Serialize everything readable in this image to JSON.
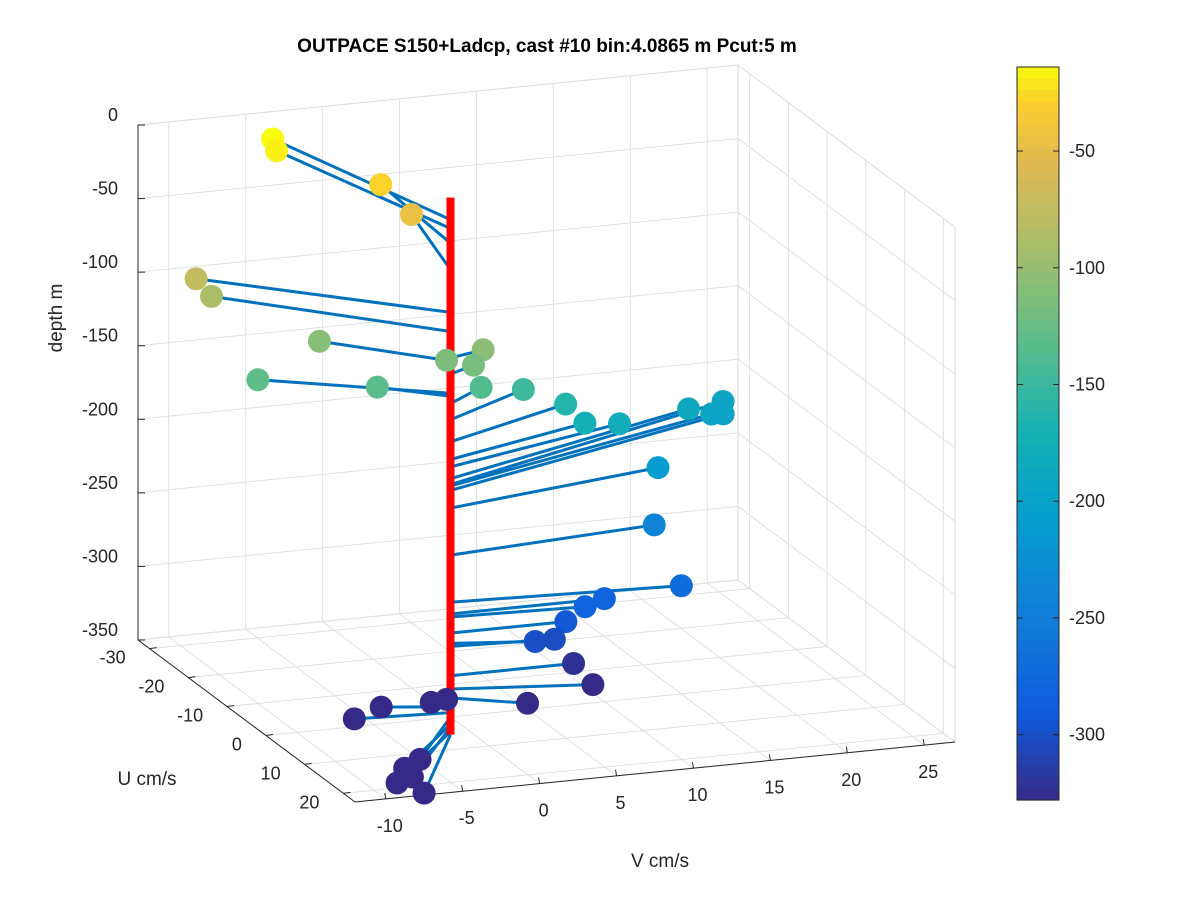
{
  "chart_data": {
    "type": "scatter",
    "projection": "3d",
    "title": "OUTPACE S150+Ladcp, cast #10 bin:4.0865 m  Pcut:5 m",
    "xlabel": "V cm/s",
    "ylabel": "U cm/s",
    "zlabel": "depth m",
    "xlim": [
      -12,
      27
    ],
    "ylim": [
      -33,
      23
    ],
    "zlim": [
      -350,
      0
    ],
    "x_ticks": [
      "-10",
      "-5",
      "0",
      "5",
      "10",
      "15",
      "20",
      "25"
    ],
    "y_ticks": [
      "-30",
      "-20",
      "-10",
      "0",
      "10",
      "20"
    ],
    "z_ticks": [
      "0",
      "-50",
      "-100",
      "-150",
      "-200",
      "-250",
      "-300",
      "-350"
    ],
    "colorbar": {
      "ticks": [
        "-50",
        "-100",
        "-150",
        "-200",
        "-250",
        "-300"
      ],
      "range": [
        -328,
        -14
      ],
      "colormap": "parula"
    },
    "grid": true,
    "profile_line_color": "#ff0000",
    "vector_line_color": "#0072bd",
    "points": [
      {
        "depth": -12,
        "v": -4,
        "u": -30
      },
      {
        "depth": -18,
        "v": -4,
        "u": -29
      },
      {
        "depth": -28,
        "v": 0.5,
        "u": -20
      },
      {
        "depth": -46,
        "v": 2,
        "u": -18
      },
      {
        "depth": -75,
        "v": -12,
        "u": -18
      },
      {
        "depth": -88,
        "v": -11,
        "u": -18
      },
      {
        "depth": -106,
        "v": 2.5,
        "u": -1.5
      },
      {
        "depth": -108,
        "v": -6,
        "u": -10
      },
      {
        "depth": -114,
        "v": 0.5,
        "u": -3
      },
      {
        "depth": -117,
        "v": 2,
        "u": -2
      },
      {
        "depth": -130,
        "v": -10,
        "u": -10
      },
      {
        "depth": -132,
        "v": -3.5,
        "u": -5
      },
      {
        "depth": -137,
        "v": 3,
        "u": -4
      },
      {
        "depth": -148,
        "v": 6.5,
        "u": -7
      },
      {
        "depth": -163,
        "v": 9.5,
        "u": -8
      },
      {
        "depth": -175,
        "v": 10.5,
        "u": -7
      },
      {
        "depth": -180,
        "v": 13,
        "u": -8
      },
      {
        "depth": -188,
        "v": 19,
        "u": -14
      },
      {
        "depth": -192,
        "v": 22,
        "u": -17
      },
      {
        "depth": -193,
        "v": 20.5,
        "u": -14
      },
      {
        "depth": -196,
        "v": 21.5,
        "u": -15
      },
      {
        "depth": -208,
        "v": 15,
        "u": -6
      },
      {
        "depth": -240,
        "v": 14,
        "u": -3
      },
      {
        "depth": -272,
        "v": 14.5,
        "u": 2
      },
      {
        "depth": -280,
        "v": 10,
        "u": 0
      },
      {
        "depth": -282,
        "v": 8.5,
        "u": 1
      },
      {
        "depth": -293,
        "v": 7.5,
        "u": 0
      },
      {
        "depth": -300,
        "v": 5,
        "u": 2
      },
      {
        "depth": -302,
        "v": 6.5,
        "u": 1
      },
      {
        "depth": -322,
        "v": 8,
        "u": 0
      },
      {
        "depth": -331,
        "v": 8.5,
        "u": 3
      },
      {
        "depth": -337,
        "v": 4,
        "u": 4
      },
      {
        "depth": -340,
        "v": 0,
        "u": -1
      },
      {
        "depth": -341,
        "v": -1,
        "u": -1
      },
      {
        "depth": -343,
        "v": -4,
        "u": -2
      },
      {
        "depth": -347,
        "v": -6,
        "u": -1
      },
      {
        "depth": -350,
        "v": -5,
        "u": 12
      },
      {
        "depth": -355,
        "v": -6,
        "u": 12
      },
      {
        "depth": -357,
        "v": -6,
        "u": 14
      },
      {
        "depth": -360,
        "v": -7,
        "u": 14
      },
      {
        "depth": -362,
        "v": -6,
        "u": 17
      }
    ]
  }
}
